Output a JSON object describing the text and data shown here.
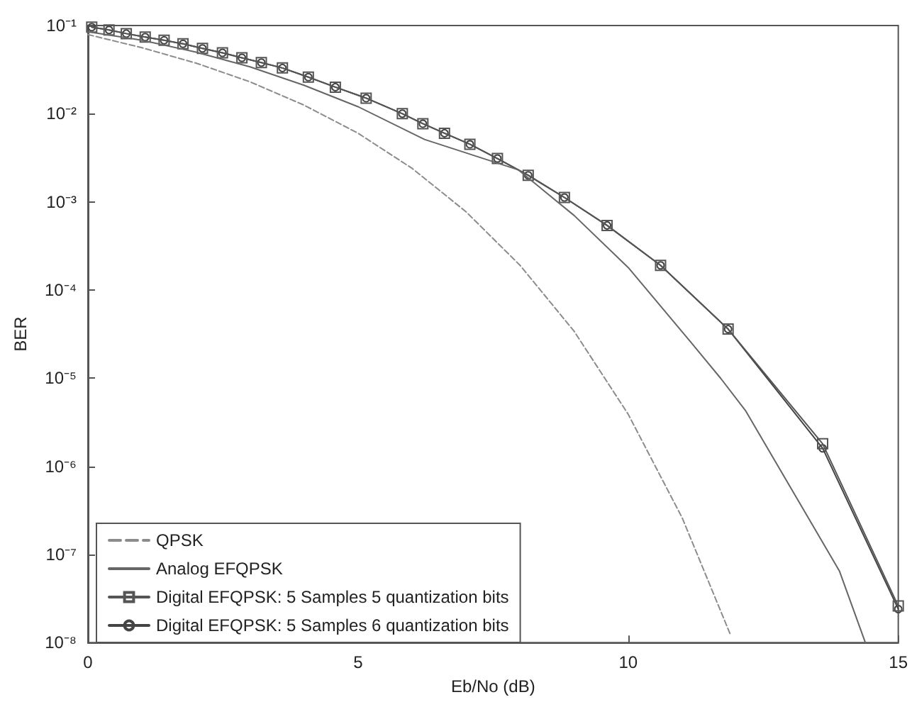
{
  "chart_data": {
    "type": "line",
    "xlabel": "Eb/No (dB)",
    "ylabel": "BER",
    "log": "y",
    "grid": false,
    "legend": "bottom left",
    "xlim": [
      0,
      15
    ],
    "xticks": [
      0,
      5,
      10,
      15
    ],
    "ylim": [
      1e-08,
      0.1
    ],
    "yticks": [
      {
        "value": 0.1,
        "label": "10⁻¹"
      },
      {
        "value": 0.01,
        "label": "10⁻²"
      },
      {
        "value": 0.001,
        "label": "10⁻³"
      },
      {
        "value": 0.0001,
        "label": "10⁻⁴"
      },
      {
        "value": 1e-05,
        "label": "10⁻⁵"
      },
      {
        "value": 1e-06,
        "label": "10⁻⁶"
      },
      {
        "value": 1e-07,
        "label": "10⁻⁷"
      },
      {
        "value": 1e-08,
        "label": "10⁻⁸"
      }
    ],
    "series": [
      {
        "name": "QPSK",
        "color": "#8c8c8c",
        "line_style": "dashed",
        "marker": "none",
        "x": [
          0,
          1,
          2,
          3,
          4,
          5,
          6,
          7,
          8,
          9,
          10,
          11,
          11.9
        ],
        "values": [
          0.079,
          0.056,
          0.0375,
          0.023,
          0.0125,
          0.006,
          0.0024,
          0.00077,
          0.00019,
          3.4e-05,
          3.9e-06,
          2.6e-07,
          1.2e-08
        ]
      },
      {
        "name": "Analog EFQPSK",
        "color": "#666666",
        "line_style": "solid",
        "marker": "none",
        "x": [
          0,
          1,
          2,
          3,
          4,
          5,
          6.23,
          7.97,
          9,
          10,
          11.15,
          11.71,
          12.17,
          13.91,
          14.39
        ],
        "values": [
          0.085,
          0.068,
          0.05,
          0.034,
          0.021,
          0.012,
          0.0051,
          0.0023,
          0.0007,
          0.00018,
          2.6e-05,
          1e-05,
          4.3e-06,
          6.5e-08,
          1e-08
        ]
      },
      {
        "name": "Digital EFQPSK: 5 Samples 5 quantization bits",
        "color": "#555555",
        "line_style": "solid",
        "marker": "square",
        "x": [
          0.07,
          0.39,
          0.71,
          1.06,
          1.41,
          1.76,
          2.12,
          2.49,
          2.85,
          3.21,
          3.6,
          4.08,
          4.58,
          5.15,
          5.82,
          6.2,
          6.6,
          7.07,
          7.58,
          8.15,
          8.82,
          9.61,
          10.6,
          11.85,
          13.6,
          15
        ],
        "values": [
          0.096,
          0.089,
          0.081,
          0.074,
          0.068,
          0.062,
          0.055,
          0.049,
          0.043,
          0.038,
          0.033,
          0.026,
          0.02,
          0.015,
          0.01,
          0.0077,
          0.006,
          0.0045,
          0.0031,
          0.002,
          0.00112,
          0.00054,
          0.00019,
          3.6e-05,
          1.8e-06,
          2.6e-08
        ]
      },
      {
        "name": "Digital EFQPSK: 5 Samples 6 quantization bits",
        "color": "#444444",
        "line_style": "solid",
        "marker": "circle",
        "x": [
          0.07,
          0.39,
          0.71,
          1.06,
          1.41,
          1.76,
          2.12,
          2.49,
          2.85,
          3.21,
          3.6,
          4.08,
          4.58,
          5.15,
          5.82,
          6.2,
          6.6,
          7.07,
          7.58,
          8.15,
          8.82,
          9.61,
          10.6,
          11.85,
          13.6,
          15
        ],
        "values": [
          0.096,
          0.089,
          0.081,
          0.074,
          0.068,
          0.062,
          0.055,
          0.049,
          0.043,
          0.038,
          0.033,
          0.026,
          0.02,
          0.015,
          0.01,
          0.0077,
          0.006,
          0.0045,
          0.0031,
          0.002,
          0.00112,
          0.00054,
          0.00019,
          3.6e-05,
          1.6e-06,
          2.4e-08
        ]
      }
    ]
  }
}
